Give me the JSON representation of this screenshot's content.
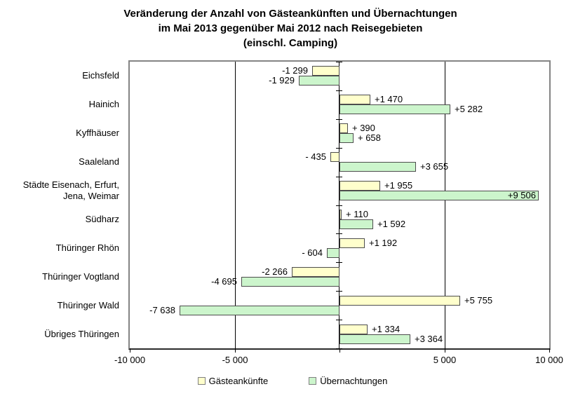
{
  "title": {
    "lines": [
      "Veränderung der Anzahl von Gästeankünften und Übernachtungen",
      "im Mai 2013 gegenüber Mai 2012 nach Reisegebieten",
      "(einschl. Camping)"
    ]
  },
  "chart_data": {
    "type": "bar",
    "orientation": "horizontal-diverging",
    "xlim": [
      -10000,
      10000
    ],
    "grid": "vertical",
    "gridline_values": [
      -5000,
      5000
    ],
    "x_ticks": [
      {
        "value": -10000,
        "label": "-10 000"
      },
      {
        "value": -5000,
        "label": "-5 000"
      },
      {
        "value": 5000,
        "label": "5 000"
      },
      {
        "value": 10000,
        "label": "10 000"
      }
    ],
    "categories": [
      "Eichsfeld",
      "Hainich",
      "Kyffhäuser",
      "Saaleland",
      "Städte Eisenach, Erfurt,\nJena, Weimar",
      "Südharz",
      "Thüringer Rhön",
      "Thüringer Vogtland",
      "Thüringer Wald",
      "Übriges Thüringen"
    ],
    "series": [
      {
        "name": "Gästeankünfte",
        "color": "#FFFFCC",
        "values": [
          -1299,
          1470,
          390,
          -435,
          1955,
          110,
          1192,
          -2266,
          5755,
          1334
        ],
        "labels": [
          "-1 299",
          "+1 470",
          "+ 390",
          "- 435",
          "+1 955",
          "+ 110",
          "+1 192",
          "-2 266",
          "+5 755",
          "+1 334"
        ],
        "labels_inside": [
          false,
          false,
          false,
          false,
          false,
          false,
          false,
          false,
          false,
          false
        ]
      },
      {
        "name": "Übernachtungen",
        "color": "#CCF5CC",
        "values": [
          -1929,
          5282,
          658,
          3655,
          9506,
          1592,
          -604,
          -4695,
          -7638,
          3364
        ],
        "labels": [
          "-1 929",
          "+5 282",
          "+ 658",
          "+3 655",
          "+9 506",
          "+1 592",
          "- 604",
          "-4 695",
          "-7 638",
          "+3 364"
        ],
        "labels_inside": [
          false,
          false,
          false,
          false,
          true,
          false,
          false,
          false,
          false,
          false
        ]
      }
    ],
    "legend": {
      "position": "bottom",
      "items": [
        {
          "label": "Gästeankünfte",
          "color": "#FFFFCC"
        },
        {
          "label": "Übernachtungen",
          "color": "#CCF5CC"
        }
      ]
    }
  }
}
